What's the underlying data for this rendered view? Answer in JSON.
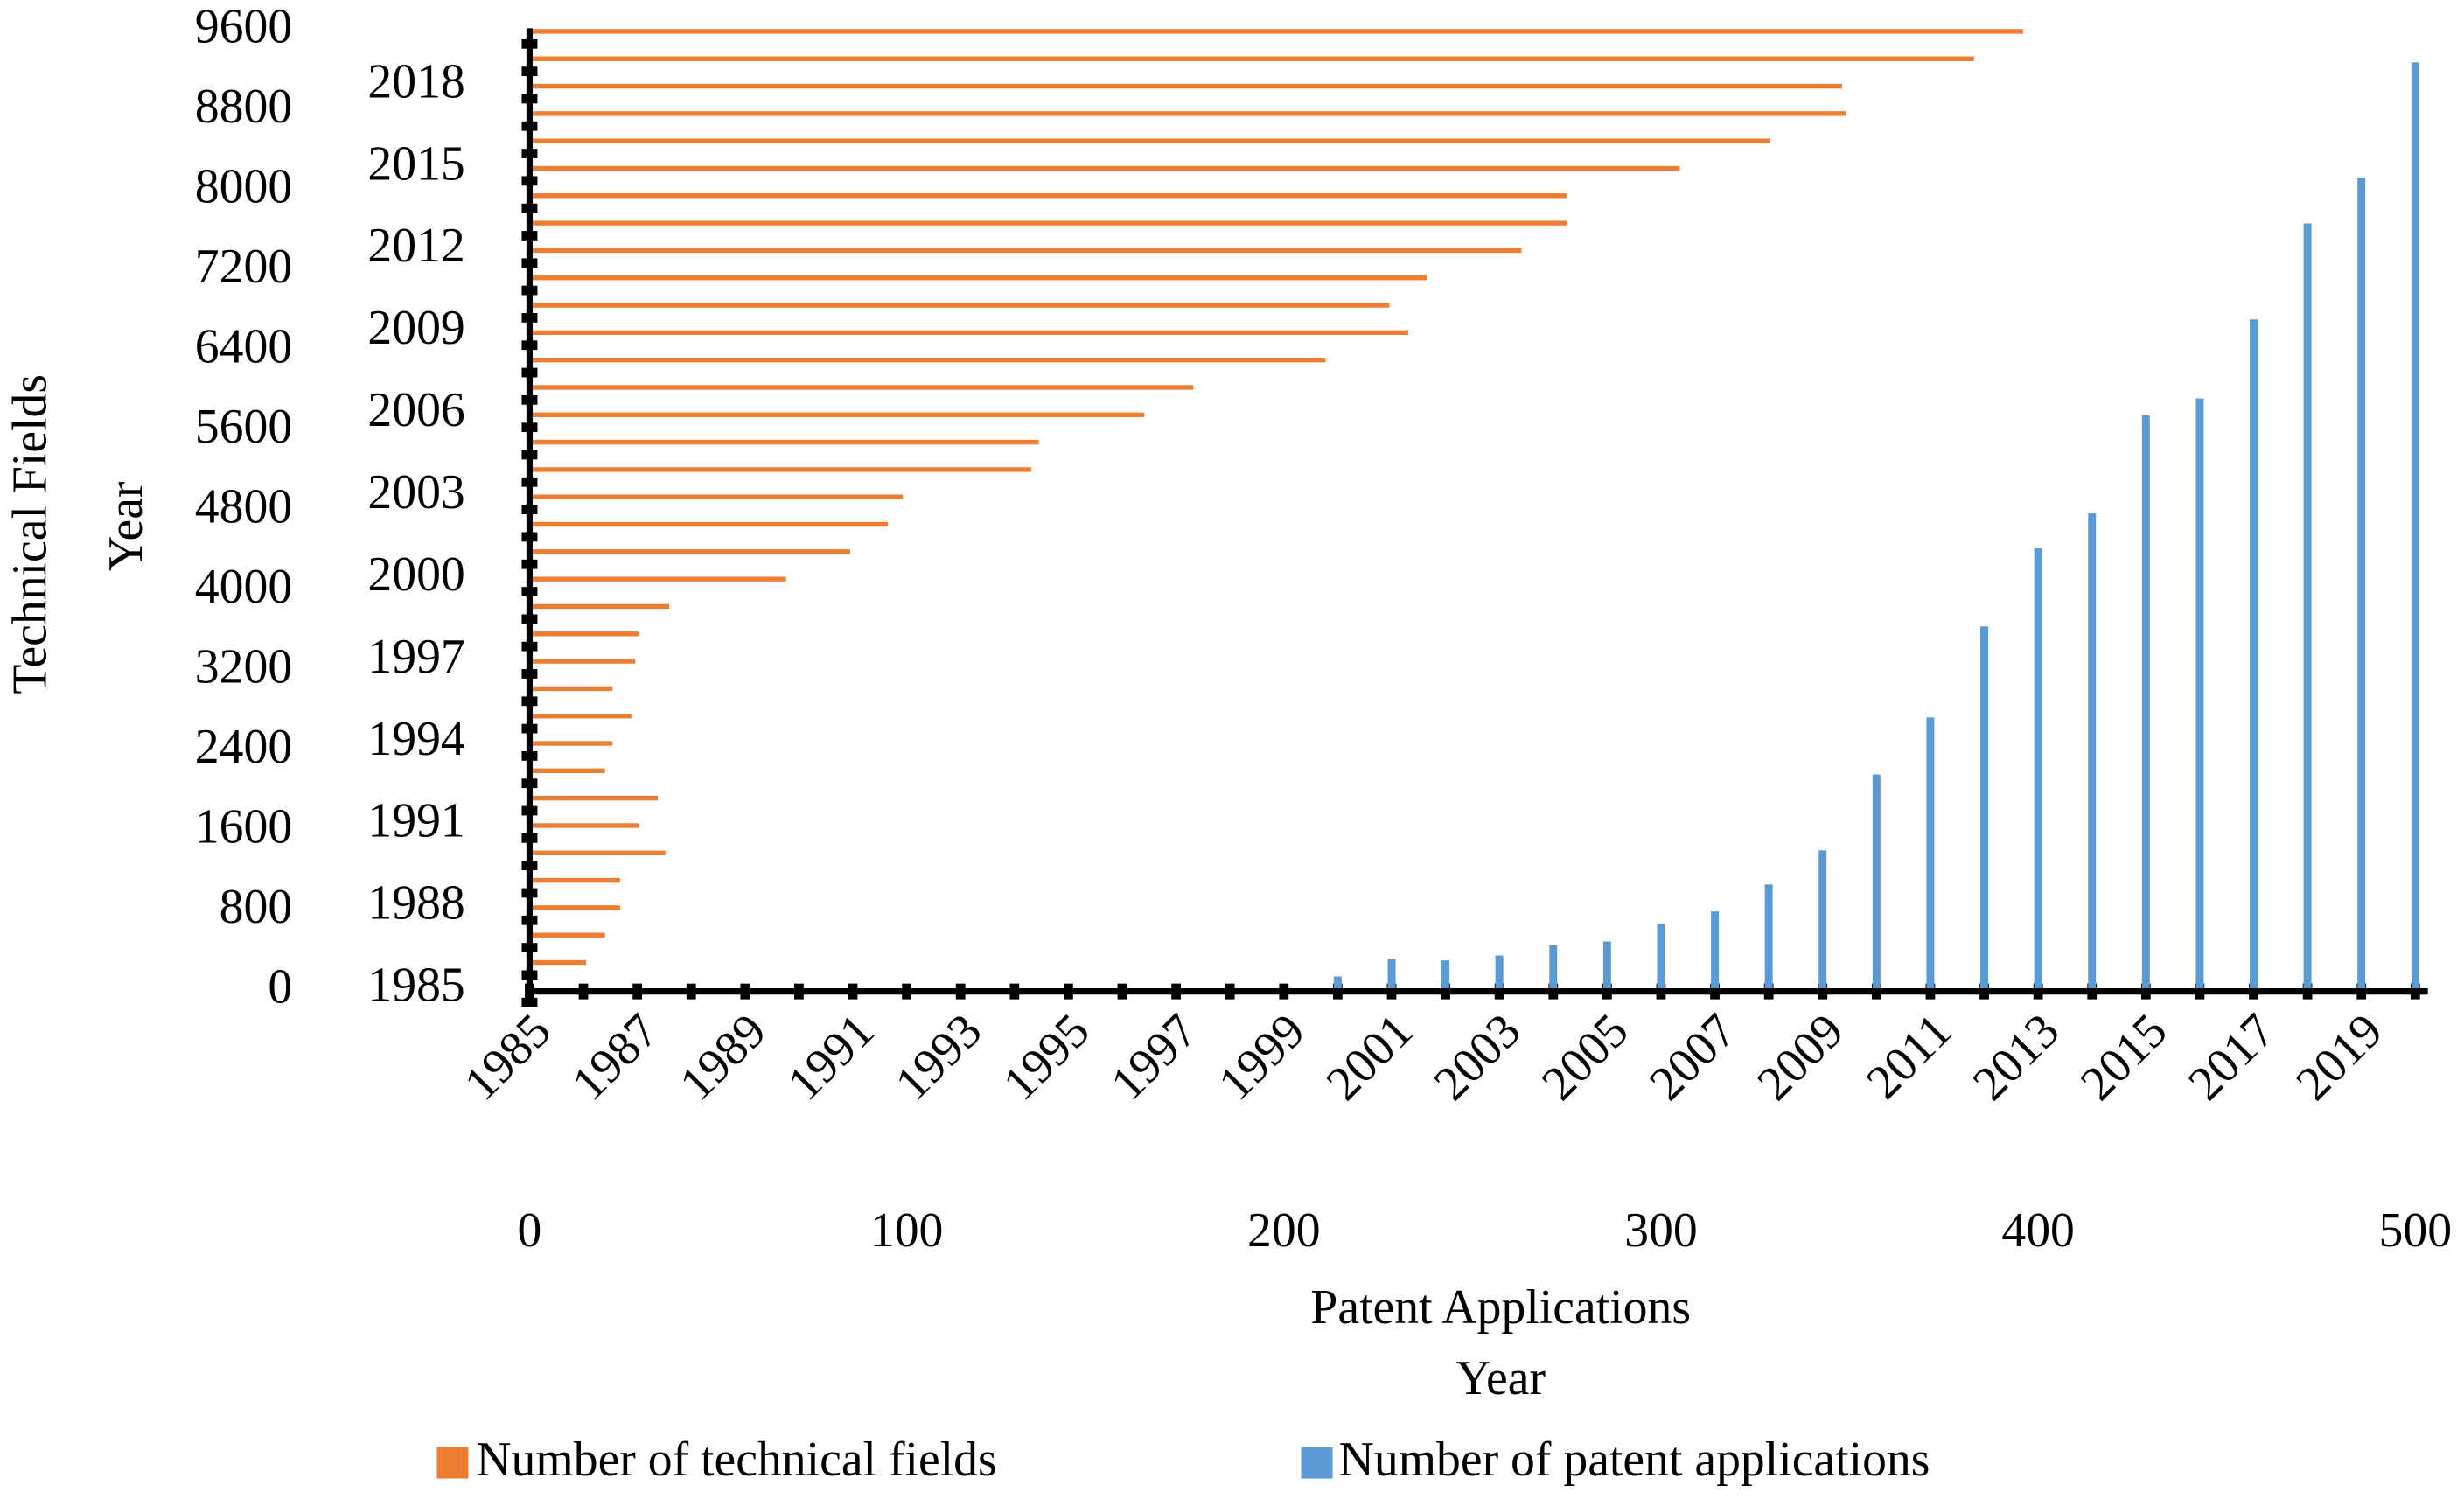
{
  "chart_data": [
    {
      "type": "bar",
      "categories": [
        "1985",
        null,
        "1987",
        null,
        "1989",
        null,
        "1991",
        null,
        "1993",
        null,
        "1995",
        null,
        "1997",
        null,
        "1999",
        null,
        "2001",
        null,
        "2003",
        null,
        "2005",
        null,
        "2007",
        null,
        "2009",
        null,
        "2011",
        null,
        "2013",
        null,
        "2015",
        null,
        "2017",
        null,
        "2019",
        null
      ],
      "series": [
        {
          "name": "Number of patent applications",
          "color": "#5b9bd5",
          "values": [
            0,
            0,
            0,
            0,
            0,
            0,
            0,
            0,
            0,
            0,
            0,
            0,
            0,
            0,
            0,
            150,
            330,
            310,
            360,
            460,
            500,
            680,
            800,
            1070,
            1410,
            2170,
            2740,
            3650,
            4430,
            4780,
            5760,
            5930,
            6720,
            7680,
            8140,
            9290
          ]
        }
      ],
      "ylim": [
        0,
        9600
      ],
      "yticks": [
        0,
        800,
        1600,
        2400,
        3200,
        4000,
        4800,
        5600,
        6400,
        7200,
        8000,
        8800,
        9600
      ],
      "x_label": "Year",
      "y_label": "Technical Fields"
    },
    {
      "type": "barh",
      "categories": [
        "1985",
        null,
        null,
        "1988",
        null,
        null,
        "1991",
        null,
        null,
        "1994",
        null,
        null,
        "1997",
        null,
        null,
        "2000",
        null,
        null,
        "2003",
        null,
        null,
        "2006",
        null,
        null,
        "2009",
        null,
        null,
        "2012",
        null,
        null,
        "2015",
        null,
        null,
        "2018",
        null,
        null
      ],
      "series": [
        {
          "name": "Number of technical fields",
          "color": "#ed7d31",
          "values": [
            0,
            15,
            20,
            24,
            24,
            36,
            29,
            34,
            20,
            22,
            27,
            22,
            28,
            29,
            37,
            68,
            85,
            95,
            99,
            133,
            135,
            163,
            176,
            211,
            233,
            228,
            238,
            263,
            275,
            275,
            305,
            329,
            349,
            348,
            383,
            396
          ]
        }
      ],
      "xlim": [
        0,
        500
      ],
      "xticks": [
        0,
        100,
        200,
        300,
        400,
        500
      ],
      "x_label": "Patent Applications",
      "y_label": "Year"
    }
  ]
}
